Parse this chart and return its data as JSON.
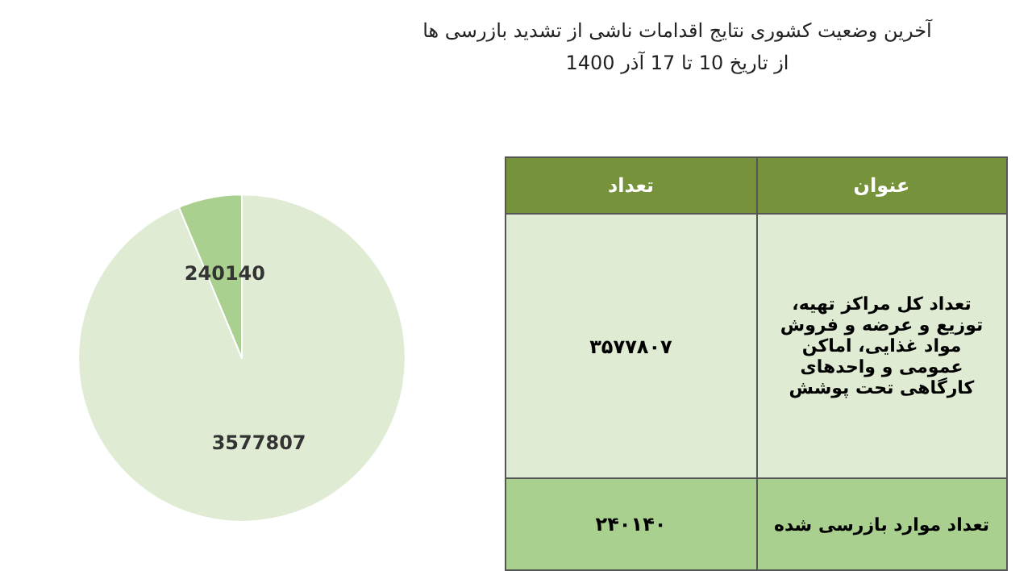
{
  "chart_data": {
    "type": "pie",
    "title": "آخرین وضعیت کشوری نتایج اقدامات ناشی از تشدید بازرسی ها",
    "subtitle": "از تاریخ 10 تا 17 آذر 1400",
    "categories": [
      null,
      null
    ],
    "values": [
      3577807,
      240140
    ],
    "colors": [
      "#dfebd3",
      "#a9d08e"
    ],
    "data_labels": true,
    "annotations": [
      "عنوان",
      "تعداد",
      "تعداد کل مراکز تهیه، توزیع و عرضه و فروش مواد غذایی، اماکن عمومی و واحدهای کارگاهی تحت پوشش",
      "۳۵۷۷۸۰۷",
      "تعداد موارد بازرسی شده",
      "۲۴۰۱۴۰"
    ]
  }
}
